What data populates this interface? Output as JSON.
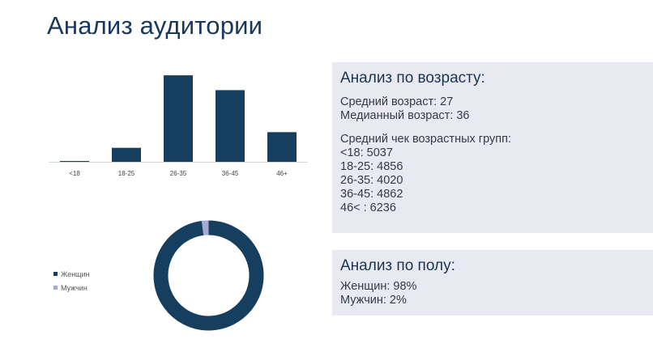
{
  "title": "Анализ аудитории",
  "colors": {
    "primary": "#163e5f",
    "secondary": "#a3abd4",
    "panel_bg": "#e8e9f1"
  },
  "age_panel": {
    "heading": "Анализ по возрасту:",
    "mean_age": "Средний возраст: 27",
    "median_age": "Медианный возраст: 36",
    "avg_check_heading": "Средний чек возрастных групп:",
    "groups": [
      "<18: 5037",
      "18-25: 4856",
      "26-35: 4020",
      "36-45: 4862",
      "46< : 6236"
    ]
  },
  "gender_panel": {
    "heading": "Анализ по полу:",
    "women": "Женщин: 98%",
    "men": "Мужчин: 2%"
  },
  "chart_data": [
    {
      "type": "bar",
      "categories": [
        "<18",
        "18-25",
        "26-35",
        "36-45",
        "46+"
      ],
      "values": [
        1,
        17,
        105,
        87,
        36
      ],
      "ylim": [
        0,
        110
      ],
      "grid": false,
      "color": "#163e5f"
    },
    {
      "type": "pie",
      "style": "donut",
      "labels": [
        "Женщин",
        "Мужчин"
      ],
      "values": [
        98,
        2
      ],
      "colors": [
        "#163e5f",
        "#a3abd4"
      ],
      "legend_position": "left"
    }
  ]
}
